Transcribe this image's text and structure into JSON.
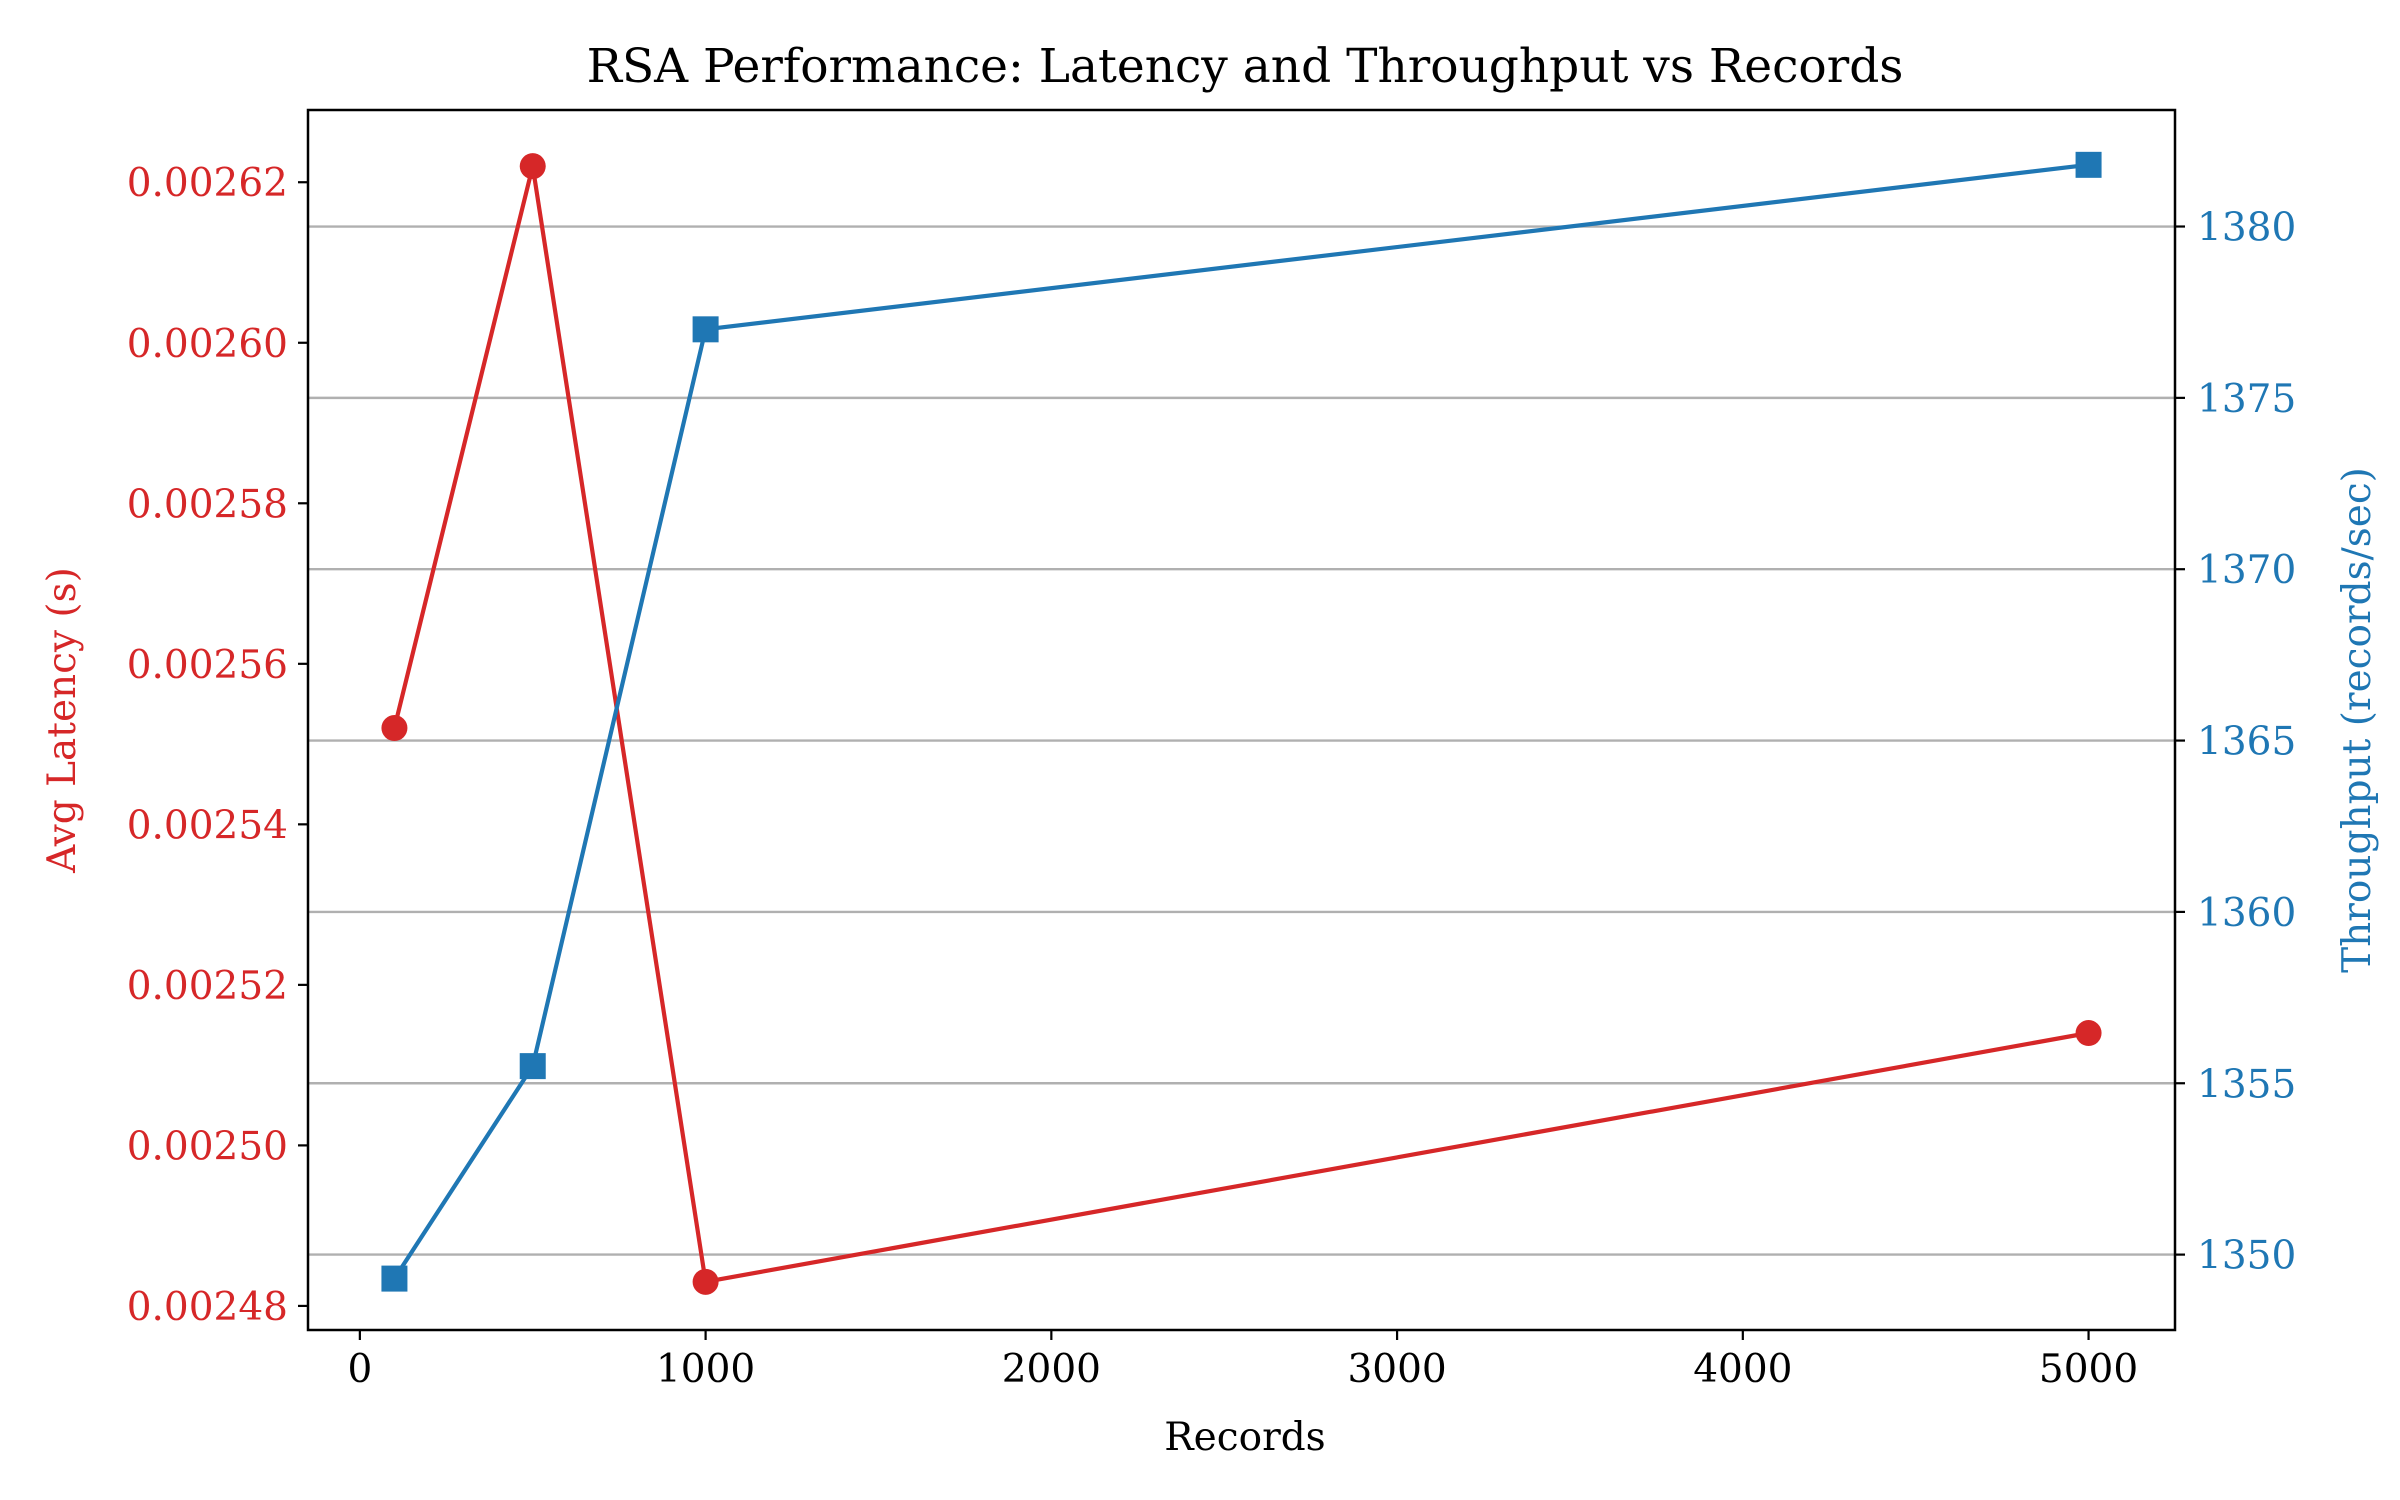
{
  "chart_data": {
    "type": "line",
    "title": "RSA Performance: Latency and Throughput vs Records",
    "xlabel": "Records",
    "ylabel_left": "Avg Latency (s)",
    "ylabel_right": "Throughput (records/sec)",
    "x": [
      100,
      500,
      1000,
      5000
    ],
    "xlim": [
      -150,
      5250
    ],
    "xticks": [
      0,
      1000,
      2000,
      3000,
      4000,
      5000
    ],
    "xtick_labels": [
      "0",
      "1000",
      "2000",
      "3000",
      "4000",
      "5000"
    ],
    "left_axis": {
      "ylim": [
        0.002477,
        0.002629
      ],
      "ticks": [
        0.00248,
        0.0025,
        0.00252,
        0.00254,
        0.00256,
        0.00258,
        0.0026,
        0.00262
      ],
      "tick_labels": [
        "0.00248",
        "0.00250",
        "0.00252",
        "0.00254",
        "0.00256",
        "0.00258",
        "0.00260",
        "0.00262"
      ],
      "color": "#d62728"
    },
    "right_axis": {
      "ylim": [
        1347.8,
        1383.4
      ],
      "ticks": [
        1350,
        1355,
        1360,
        1365,
        1370,
        1375,
        1380
      ],
      "tick_labels": [
        "1350",
        "1355",
        "1360",
        "1365",
        "1370",
        "1375",
        "1380"
      ],
      "color": "#1f77b4"
    },
    "grid": "horizontal (right axis)",
    "series": [
      {
        "axis": "left",
        "color": "#d62728",
        "marker": "circle",
        "values": [
          0.002552,
          0.002622,
          0.002483,
          0.002514
        ]
      },
      {
        "axis": "right",
        "color": "#1f77b4",
        "marker": "square",
        "values": [
          1349.3,
          1355.5,
          1377.0,
          1381.8
        ]
      }
    ]
  }
}
